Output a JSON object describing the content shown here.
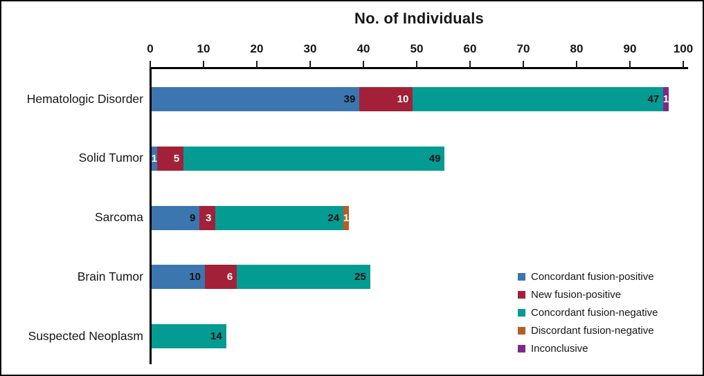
{
  "chart_data": {
    "type": "bar",
    "variant": "horizontal-stacked",
    "title": "No. of Individuals",
    "xlabel": "No. of Individuals",
    "ylabel": "",
    "axis": {
      "position": "top",
      "min": 0,
      "max": 100,
      "ticks": [
        0,
        10,
        20,
        30,
        40,
        50,
        60,
        70,
        80,
        90,
        100
      ]
    },
    "grid": "off",
    "legend_position": "bottom-right",
    "categories": [
      "Hematologic Disorder",
      "Solid Tumor",
      "Sarcoma",
      "Brain Tumor",
      "Suspected Neoplasm"
    ],
    "series": [
      {
        "name": "Concordant fusion-positive",
        "color": "#3b76ae",
        "label_color": "#111111",
        "values": [
          39,
          1,
          9,
          10,
          0
        ]
      },
      {
        "name": "New fusion-positive",
        "color": "#a32138",
        "label_color": "#ffffff",
        "values": [
          10,
          5,
          3,
          6,
          0
        ]
      },
      {
        "name": "Concordant fusion-negative",
        "color": "#049b93",
        "label_color": "#111111",
        "values": [
          47,
          49,
          24,
          25,
          14
        ]
      },
      {
        "name": "Discordant fusion-negative",
        "color": "#b65e25",
        "label_color": "#ffffff",
        "values": [
          0,
          0,
          1,
          0,
          0
        ]
      },
      {
        "name": "Inconclusive",
        "color": "#7d2b88",
        "label_color": "#ffffff",
        "values": [
          1,
          0,
          0,
          0,
          0
        ]
      }
    ],
    "totals": [
      97,
      55,
      37,
      41,
      14
    ]
  },
  "colors": {
    "frame_border": "#000000",
    "axis": "#000000",
    "text": "#161616",
    "background": "#ffffff"
  }
}
